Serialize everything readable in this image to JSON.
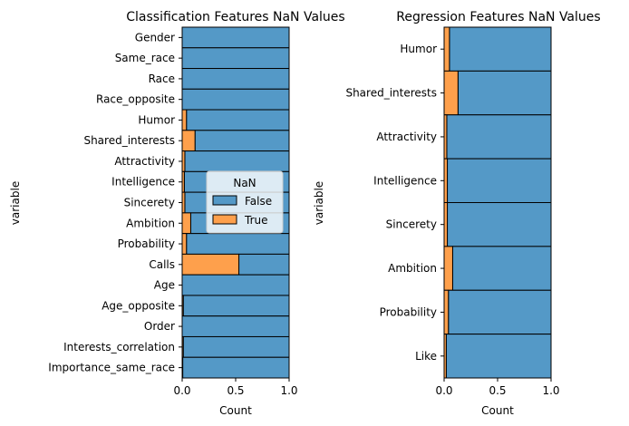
{
  "chart_data": [
    {
      "type": "bar",
      "orientation": "horizontal",
      "stacked": true,
      "title": "Classification Features NaN Values",
      "xlabel": "Count",
      "ylabel": "variable",
      "xlim": [
        0,
        1
      ],
      "xticks": [
        "0.0",
        "0.5",
        "1.0"
      ],
      "categories": [
        "Gender",
        "Same_race",
        "Race",
        "Race_opposite",
        "Humor",
        "Shared_interests",
        "Attractivity",
        "Intelligence",
        "Sincerety",
        "Ambition",
        "Probability",
        "Calls",
        "Age",
        "Age_opposite",
        "Order",
        "Interests_correlation",
        "Importance_same_race"
      ],
      "series": [
        {
          "name": "False",
          "color": "#5499c7",
          "values": [
            1.0,
            1.0,
            1.0,
            1.0,
            0.96,
            0.88,
            0.975,
            0.98,
            0.975,
            0.92,
            0.96,
            0.47,
            1.0,
            0.99,
            1.0,
            0.99,
            0.995
          ]
        },
        {
          "name": "True",
          "color": "#fea04c",
          "values": [
            0.0,
            0.0,
            0.0,
            0.0,
            0.04,
            0.12,
            0.025,
            0.02,
            0.025,
            0.08,
            0.04,
            0.53,
            0.0,
            0.01,
            0.0,
            0.01,
            0.005
          ]
        }
      ],
      "legend": {
        "title": "NaN",
        "entries": [
          "False",
          "True"
        ],
        "placement": "center-right"
      }
    },
    {
      "type": "bar",
      "orientation": "horizontal",
      "stacked": true,
      "title": "Regression Features NaN Values",
      "xlabel": "Count",
      "ylabel": "variable",
      "xlim": [
        0,
        1
      ],
      "xticks": [
        "0.0",
        "0.5",
        "1.0"
      ],
      "categories": [
        "Humor",
        "Shared_interests",
        "Attractivity",
        "Intelligence",
        "Sincerety",
        "Ambition",
        "Probability",
        "Like"
      ],
      "series": [
        {
          "name": "False",
          "color": "#5499c7",
          "values": [
            0.95,
            0.87,
            0.975,
            0.97,
            0.97,
            0.92,
            0.96,
            0.98
          ]
        },
        {
          "name": "True",
          "color": "#fea04c",
          "values": [
            0.05,
            0.13,
            0.025,
            0.03,
            0.03,
            0.08,
            0.04,
            0.02
          ]
        }
      ]
    }
  ]
}
